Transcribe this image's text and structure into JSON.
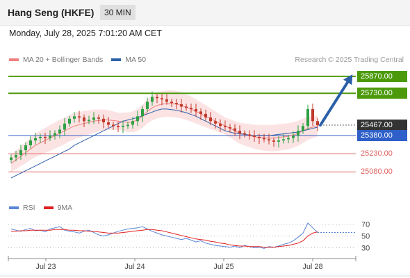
{
  "header": {
    "title": "Hang Seng (HKFE)",
    "timeframe": "30 MIN"
  },
  "datetime": "Monday, July 28, 2025 7:01:20 AM CET",
  "legend": {
    "items": [
      {
        "label": "MA 20 + Bollinger Bands",
        "color": "#f08080"
      },
      {
        "label": "MA 50",
        "color": "#2b5fa8"
      }
    ],
    "credit": "Research © 2025 Trading Central"
  },
  "rsi_legend": {
    "items": [
      {
        "label": "RSI",
        "color": "#5b86d6"
      },
      {
        "label": "9MA",
        "color": "#e02020"
      }
    ]
  },
  "colors": {
    "green": "#4c9a0c",
    "blue": "#2f5fc8",
    "red": "#e06060",
    "arrow": "#2b5fa8",
    "bull": "#2ea043",
    "bear": "#c0392b"
  },
  "chart_data": [
    {
      "type": "candlestick",
      "title": "Hang Seng (HKFE) 30 MIN",
      "x_ticks": [
        "Jul 23",
        "Jul 24",
        "Jul 25",
        "Jul 28"
      ],
      "ylim": [
        24950,
        25950
      ],
      "levels": [
        {
          "label": "25870.00",
          "value": 25870,
          "kind": "resistance",
          "color": "#4c9a0c"
        },
        {
          "label": "25730.00",
          "value": 25730,
          "kind": "resistance",
          "color": "#4c9a0c"
        },
        {
          "label": "25467.00",
          "value": 25467,
          "kind": "last",
          "color": "#333333"
        },
        {
          "label": "25380.00",
          "value": 25380,
          "kind": "pivot",
          "color": "#2f5fc8"
        },
        {
          "label": "25230.00",
          "value": 25230,
          "kind": "support",
          "color": "#e06060"
        },
        {
          "label": "25080.00",
          "value": 25080,
          "kind": "support",
          "color": "#e06060"
        }
      ],
      "series": [
        {
          "name": "Price",
          "values": [
            25200,
            25220,
            25260,
            25300,
            25340,
            25360,
            25370,
            25360,
            25380,
            25400,
            25430,
            25480,
            25520,
            25540,
            25530,
            25500,
            25510,
            25530,
            25520,
            25490,
            25470,
            25460,
            25450,
            25460,
            25470,
            25500,
            25540,
            25600,
            25660,
            25700,
            25690,
            25680,
            25660,
            25650,
            25640,
            25620,
            25610,
            25600,
            25580,
            25560,
            25530,
            25500,
            25480,
            25460,
            25450,
            25440,
            25420,
            25400,
            25390,
            25380,
            25370,
            25360,
            25350,
            25340,
            25330,
            25340,
            25350,
            25360,
            25380,
            25420,
            25460,
            25600,
            25500,
            25467
          ]
        },
        {
          "name": "MA 50",
          "values": [
            25030,
            25050,
            25070,
            25090,
            25110,
            25130,
            25150,
            25170,
            25190,
            25210,
            25230,
            25250,
            25270,
            25300,
            25320,
            25340,
            25360,
            25380,
            25400,
            25420,
            25440,
            25460,
            25480,
            25500,
            25510,
            25520,
            25530,
            25545,
            25560,
            25575,
            25590,
            25600,
            25600,
            25595,
            25590,
            25580,
            25570,
            25555,
            25540,
            25520,
            25500,
            25480,
            25460,
            25440,
            25420,
            25410,
            25400,
            25395,
            25390,
            25385,
            25380,
            25378,
            25378,
            25380,
            25385,
            25390,
            25395,
            25400,
            25405,
            25410,
            25420,
            25430,
            25440,
            25450
          ]
        },
        {
          "name": "MA 20",
          "values": [
            25150,
            25180,
            25210,
            25240,
            25270,
            25300,
            25320,
            25340,
            25360,
            25380,
            25400,
            25420,
            25440,
            25460,
            25470,
            25480,
            25490,
            25500,
            25505,
            25510,
            25510,
            25505,
            25500,
            25495,
            25490,
            25495,
            25510,
            25540,
            25580,
            25610,
            25630,
            25640,
            25645,
            25645,
            25640,
            25630,
            25615,
            25600,
            25580,
            25560,
            25540,
            25520,
            25500,
            25480,
            25460,
            25440,
            25420,
            25400,
            25390,
            25380,
            25370,
            25365,
            25362,
            25360,
            25360,
            25365,
            25370,
            25375,
            25385,
            25400,
            25420,
            25440,
            25450,
            25460
          ]
        }
      ]
    },
    {
      "type": "line",
      "title": "RSI",
      "y_ticks": [
        "70",
        "50",
        "30"
      ],
      "ylim": [
        20,
        85
      ],
      "series": [
        {
          "name": "RSI",
          "values": [
            62,
            60,
            58,
            61,
            63,
            59,
            60,
            57,
            62,
            64,
            66,
            60,
            58,
            57,
            55,
            58,
            60,
            56,
            52,
            50,
            52,
            55,
            58,
            60,
            62,
            63,
            64,
            66,
            62,
            58,
            55,
            52,
            50,
            48,
            46,
            44,
            46,
            43,
            40,
            42,
            38,
            36,
            34,
            33,
            32,
            31,
            33,
            30,
            34,
            32,
            30,
            31,
            29,
            32,
            31,
            33,
            36,
            38,
            42,
            48,
            55,
            72,
            64,
            56
          ]
        },
        {
          "name": "9MA",
          "values": [
            58,
            58,
            59,
            59,
            60,
            60,
            60,
            60,
            60,
            61,
            61,
            61,
            60,
            60,
            59,
            59,
            58,
            58,
            57,
            56,
            55,
            55,
            55,
            56,
            57,
            58,
            59,
            60,
            61,
            61,
            60,
            59,
            57,
            55,
            53,
            51,
            49,
            47,
            45,
            44,
            43,
            41,
            40,
            38,
            37,
            35,
            34,
            33,
            33,
            32,
            32,
            32,
            31,
            31,
            31,
            32,
            33,
            34,
            36,
            38,
            42,
            50,
            55,
            57
          ]
        }
      ]
    }
  ]
}
